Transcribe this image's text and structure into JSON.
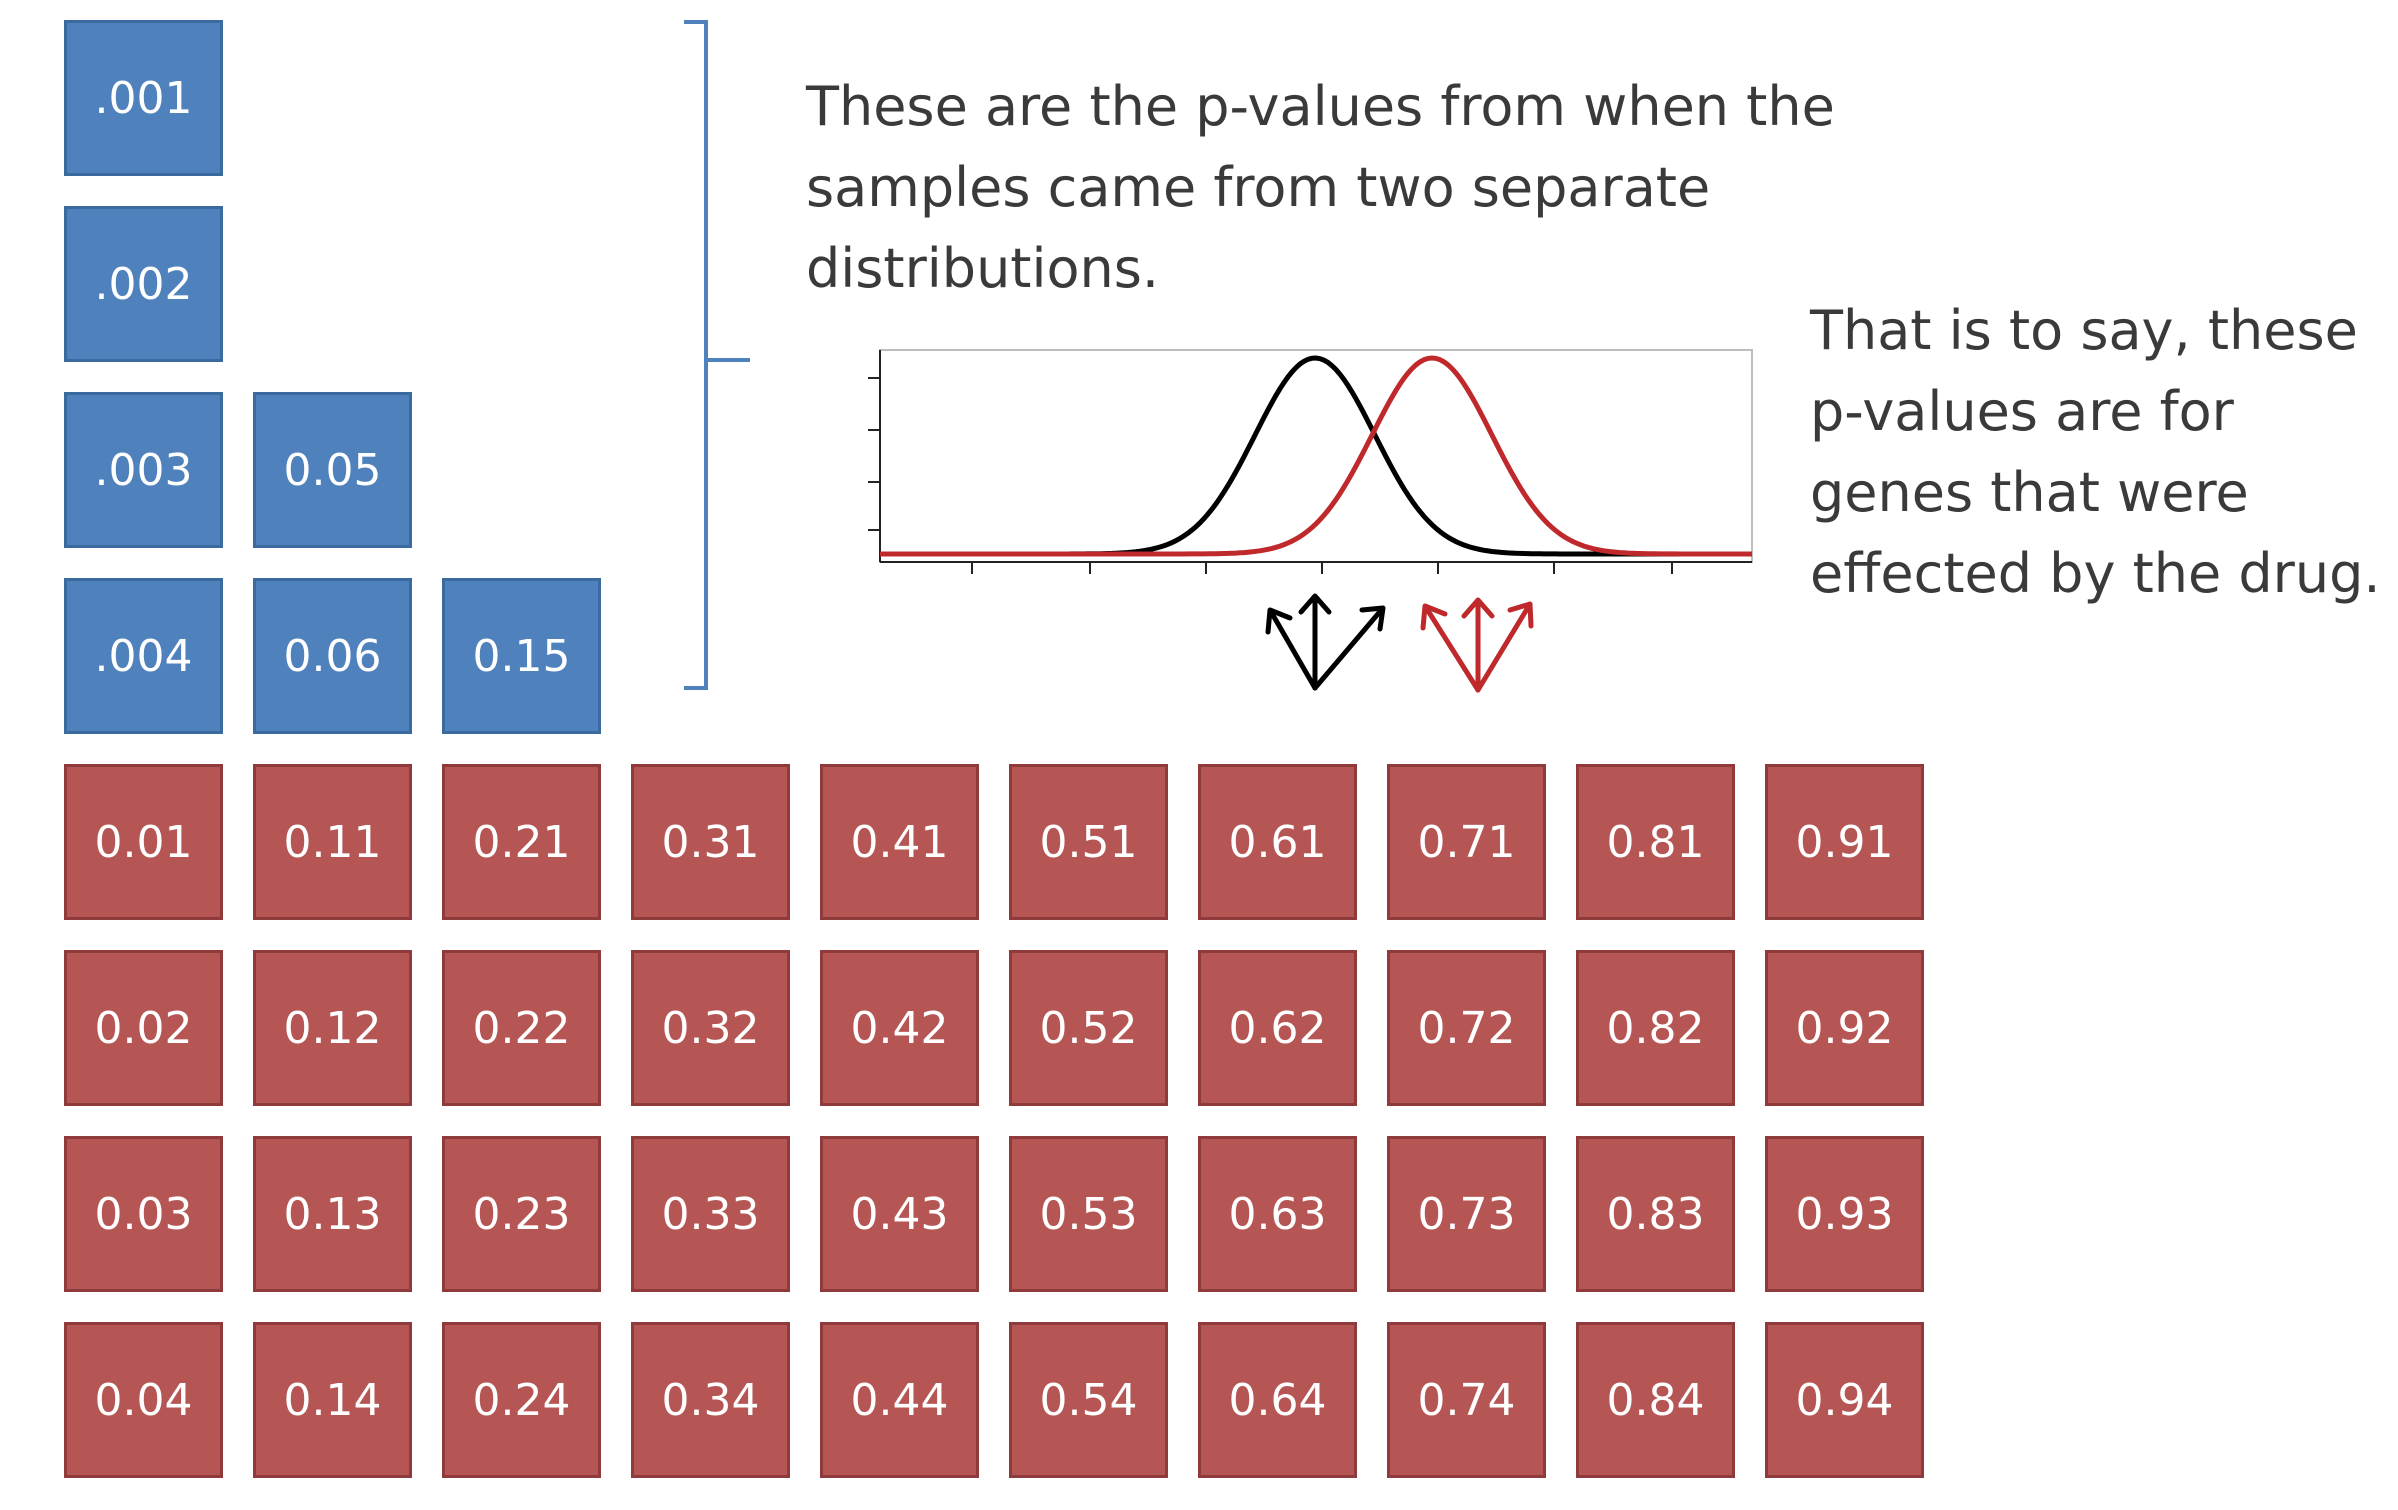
{
  "blue_columns": [
    [
      ".001",
      ".002",
      ".003",
      ".004"
    ],
    [
      "0.05",
      "0.06"
    ],
    [
      "0.15"
    ]
  ],
  "red_grid": [
    [
      "0.01",
      "0.11",
      "0.21",
      "0.31",
      "0.41",
      "0.51",
      "0.61",
      "0.71",
      "0.81",
      "0.91"
    ],
    [
      "0.02",
      "0.12",
      "0.22",
      "0.32",
      "0.42",
      "0.52",
      "0.62",
      "0.72",
      "0.82",
      "0.92"
    ],
    [
      "0.03",
      "0.13",
      "0.23",
      "0.33",
      "0.43",
      "0.53",
      "0.63",
      "0.73",
      "0.83",
      "0.93"
    ],
    [
      "0.04",
      "0.14",
      "0.24",
      "0.34",
      "0.44",
      "0.54",
      "0.64",
      "0.74",
      "0.84",
      "0.94"
    ]
  ],
  "caption_main": [
    "These are the p-values from when the",
    "samples came from two separate",
    "distributions."
  ],
  "caption_side": [
    "That is to say, these",
    "p-values are for",
    "genes that were",
    "effected by the drug."
  ],
  "colors": {
    "blue_fill": "#4f81bd",
    "red_fill": "#b55655",
    "curve_black": "#000000",
    "curve_red": "#c0292b"
  },
  "icons": [
    "bracket-icon",
    "black-sampling-arrows-icon",
    "red-sampling-arrows-icon"
  ]
}
